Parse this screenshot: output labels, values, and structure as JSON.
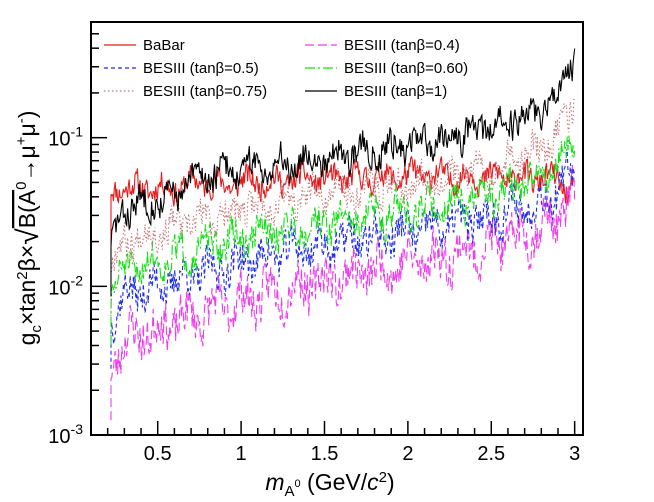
{
  "chart_data": {
    "type": "line",
    "title": "",
    "xlabel": "m_{A^0} (GeV/c^2)",
    "ylabel": "g_c × tan^2β × √B(A^0 → μ^+ μ^-)",
    "xlim": [
      0.1,
      3.05
    ],
    "ylim": [
      0.001,
      0.6
    ],
    "yscale": "log",
    "x_tick_labels": [
      "0.5",
      "1",
      "1.5",
      "2",
      "2.5",
      "3"
    ],
    "y_tick_labels": [
      {
        "base": "10",
        "exp": "-3"
      },
      {
        "base": "10",
        "exp": "-2"
      },
      {
        "base": "10",
        "exp": "-1"
      }
    ],
    "legend_placement": "top-left",
    "x": [
      0.22,
      0.3,
      0.4,
      0.5,
      0.6,
      0.7,
      0.8,
      0.9,
      1.0,
      1.1,
      1.2,
      1.3,
      1.4,
      1.5,
      1.6,
      1.7,
      1.8,
      1.9,
      2.0,
      2.1,
      2.2,
      2.3,
      2.4,
      2.5,
      2.6,
      2.7,
      2.8,
      2.9,
      3.0
    ],
    "series": [
      {
        "name": "BaBar",
        "color": "#e41a1c",
        "dash": "",
        "values": [
          0.042,
          0.048,
          0.045,
          0.047,
          0.045,
          0.05,
          0.05,
          0.048,
          0.05,
          0.051,
          0.05,
          0.052,
          0.054,
          0.052,
          0.053,
          0.053,
          0.055,
          0.054,
          0.055,
          0.056,
          0.055,
          0.054,
          0.055,
          0.055,
          0.054,
          0.054,
          0.053,
          0.052,
          0.04
        ],
        "variance": 0.12,
        "seed": 11
      },
      {
        "name": "BESIII (tanβ=0.4)",
        "color": "#ee3dee",
        "dash": "9,4",
        "values": [
          0.0028,
          0.0045,
          0.0048,
          0.0052,
          0.0058,
          0.0062,
          0.0068,
          0.0074,
          0.008,
          0.0087,
          0.0093,
          0.0099,
          0.0106,
          0.0111,
          0.0118,
          0.0124,
          0.013,
          0.0137,
          0.0144,
          0.0152,
          0.016,
          0.0168,
          0.0178,
          0.019,
          0.0205,
          0.0222,
          0.025,
          0.03,
          0.04
        ],
        "variance": 0.22,
        "seed": 23
      },
      {
        "name": "BESIII (tanβ=0.5)",
        "color": "#1f2ee8",
        "dash": "4,3",
        "values": [
          0.0062,
          0.0088,
          0.0095,
          0.01,
          0.011,
          0.0118,
          0.0126,
          0.0136,
          0.0146,
          0.0156,
          0.0165,
          0.0175,
          0.0182,
          0.019,
          0.02,
          0.0208,
          0.0215,
          0.0223,
          0.0232,
          0.0242,
          0.0252,
          0.0265,
          0.028,
          0.03,
          0.032,
          0.0345,
          0.038,
          0.045,
          0.06
        ],
        "variance": 0.18,
        "seed": 37
      },
      {
        "name": "BESIII (tanβ=0.60)",
        "color": "#12e012",
        "dash": "10,3,2,3",
        "values": [
          0.009,
          0.0128,
          0.0138,
          0.0148,
          0.016,
          0.0172,
          0.0184,
          0.0196,
          0.021,
          0.0222,
          0.0234,
          0.0247,
          0.0258,
          0.0268,
          0.028,
          0.0292,
          0.0304,
          0.0316,
          0.0328,
          0.034,
          0.0355,
          0.037,
          0.039,
          0.042,
          0.045,
          0.049,
          0.055,
          0.07,
          0.09
        ],
        "variance": 0.16,
        "seed": 51
      },
      {
        "name": "BESIII (tanβ=0.75)",
        "color": "#c87878",
        "dash": "1.5,2.5",
        "values": [
          0.014,
          0.0205,
          0.022,
          0.0235,
          0.0252,
          0.027,
          0.0288,
          0.0305,
          0.0325,
          0.0343,
          0.036,
          0.0378,
          0.0396,
          0.0412,
          0.043,
          0.0448,
          0.0466,
          0.0484,
          0.0503,
          0.0522,
          0.0545,
          0.057,
          0.06,
          0.064,
          0.069,
          0.076,
          0.086,
          0.105,
          0.18
        ],
        "variance": 0.15,
        "seed": 67
      },
      {
        "name": "BESIII (tanβ=1)",
        "color": "#000000",
        "dash": "",
        "values": [
          0.019,
          0.033,
          0.036,
          0.038,
          0.0395,
          0.052,
          0.056,
          0.059,
          0.062,
          0.064,
          0.066,
          0.069,
          0.072,
          0.074,
          0.078,
          0.08,
          0.083,
          0.086,
          0.09,
          0.094,
          0.099,
          0.104,
          0.11,
          0.118,
          0.128,
          0.14,
          0.16,
          0.2,
          0.35
        ],
        "variance": 0.14,
        "seed": 83
      }
    ]
  }
}
